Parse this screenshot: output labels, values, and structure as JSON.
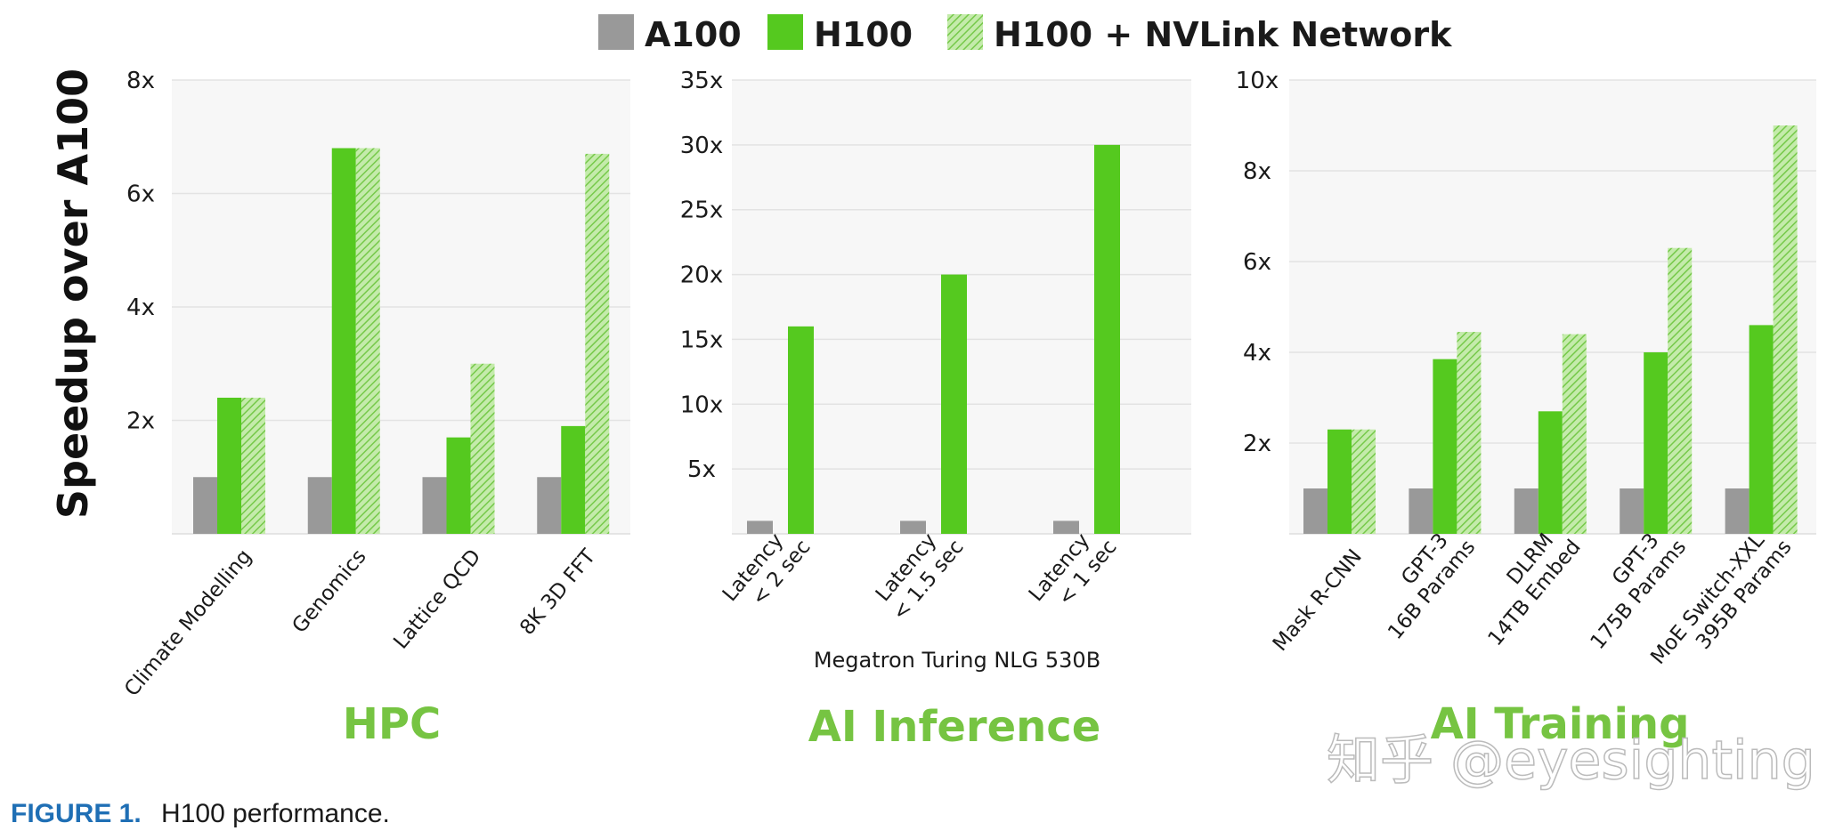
{
  "legend": [
    {
      "name": "A100",
      "color": "#999999",
      "pattern": "solid"
    },
    {
      "name": "H100",
      "color": "#55c91f",
      "pattern": "solid"
    },
    {
      "name": "H100 + NVLink Network",
      "color": "#8fd46a",
      "pattern": "hatched"
    }
  ],
  "y_axis_title": "Speedup over A100",
  "watermark": "知乎 @eyesighting",
  "caption": {
    "label": "FIGURE 1.",
    "text": "H100 performance."
  },
  "chart_data": [
    {
      "type": "bar",
      "title": "HPC",
      "ylabel": "Speedup over A100",
      "ylim": [
        0,
        8
      ],
      "yticks": [
        {
          "v": 2,
          "label": "2x"
        },
        {
          "v": 4,
          "label": "4x"
        },
        {
          "v": 6,
          "label": "6x"
        },
        {
          "v": 8,
          "label": "8x"
        }
      ],
      "categories": [
        [
          "Climate Modelling"
        ],
        [
          "Genomics"
        ],
        [
          "Lattice QCD"
        ],
        [
          "8K 3D FFT"
        ]
      ],
      "series": [
        {
          "name": "A100",
          "values": [
            1,
            1,
            1,
            1
          ]
        },
        {
          "name": "H100",
          "values": [
            2.4,
            6.8,
            1.7,
            1.9
          ]
        },
        {
          "name": "H100 + NVLink Network",
          "values": [
            2.4,
            6.8,
            3.0,
            6.7
          ]
        }
      ],
      "grid": true
    },
    {
      "type": "bar",
      "title": "AI Inference",
      "subtitle": "Megatron Turing NLG 530B",
      "ylim": [
        0,
        35
      ],
      "yticks": [
        {
          "v": 5,
          "label": "5x"
        },
        {
          "v": 10,
          "label": "10x"
        },
        {
          "v": 15,
          "label": "15x"
        },
        {
          "v": 20,
          "label": "20x"
        },
        {
          "v": 25,
          "label": "25x"
        },
        {
          "v": 30,
          "label": "30x"
        },
        {
          "v": 35,
          "label": "35x"
        }
      ],
      "categories": [
        [
          "Latency",
          "< 2 sec"
        ],
        [
          "Latency",
          "< 1.5 sec"
        ],
        [
          "Latency",
          "< 1 sec"
        ]
      ],
      "series": [
        {
          "name": "A100",
          "values": [
            1,
            1,
            1
          ]
        },
        {
          "name": "H100",
          "values": [
            16,
            20,
            30
          ]
        }
      ],
      "grid": true
    },
    {
      "type": "bar",
      "title": "AI Training",
      "ylim": [
        0,
        10
      ],
      "yticks": [
        {
          "v": 2,
          "label": "2x"
        },
        {
          "v": 4,
          "label": "4x"
        },
        {
          "v": 6,
          "label": "6x"
        },
        {
          "v": 8,
          "label": "8x"
        },
        {
          "v": 10,
          "label": "10x"
        }
      ],
      "categories": [
        [
          "Mask R-CNN"
        ],
        [
          "GPT-3",
          "16B Params"
        ],
        [
          "DLRM",
          "14TB Embed"
        ],
        [
          "GPT-3",
          "175B Params"
        ],
        [
          "MoE Switch-XXL",
          "395B Params"
        ]
      ],
      "series": [
        {
          "name": "A100",
          "values": [
            1,
            1,
            1,
            1,
            1
          ]
        },
        {
          "name": "H100",
          "values": [
            2.3,
            3.85,
            2.7,
            4.0,
            4.6
          ]
        },
        {
          "name": "H100 + NVLink Network",
          "values": [
            2.3,
            4.45,
            4.4,
            6.3,
            9.0
          ]
        }
      ],
      "grid": true
    }
  ]
}
